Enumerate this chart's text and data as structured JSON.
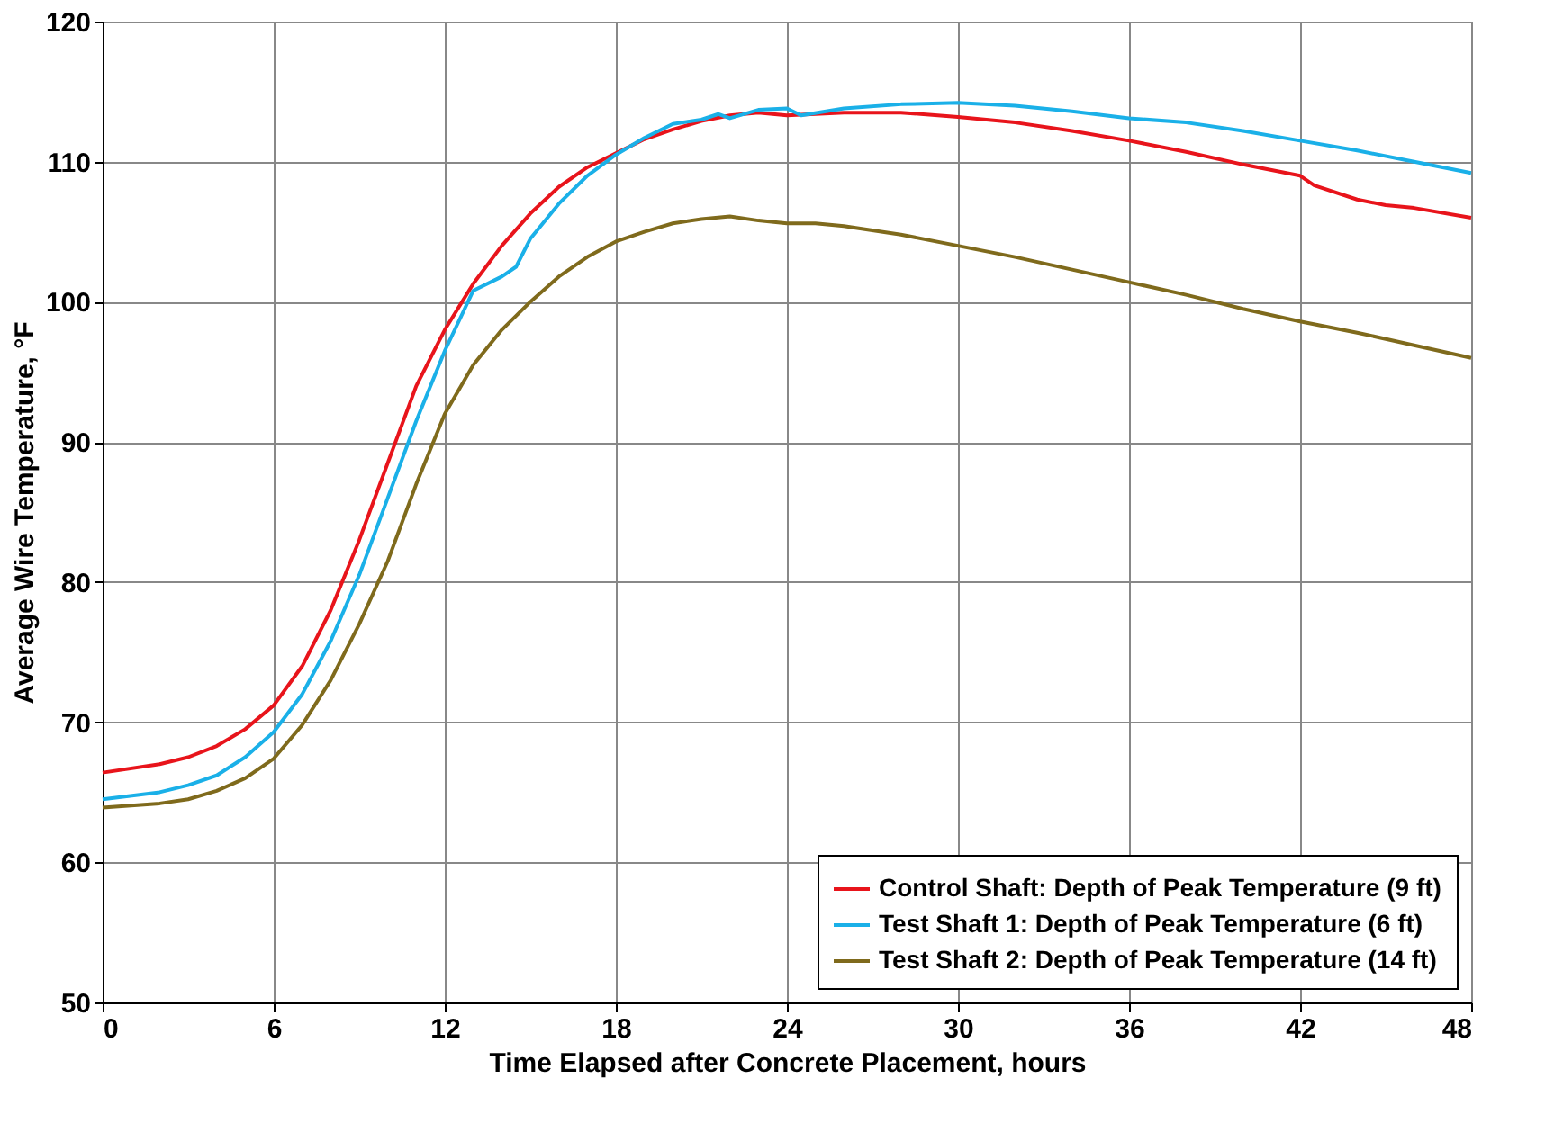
{
  "chart_data": {
    "type": "line",
    "xlabel": "Time Elapsed after Concrete Placement, hours",
    "ylabel": "Average Wire Temperature, °F",
    "xlim": [
      0,
      48
    ],
    "xticks": [
      0,
      6,
      12,
      18,
      24,
      30,
      36,
      42,
      48
    ],
    "ylim": [
      50,
      120
    ],
    "yticks": [
      50,
      60,
      70,
      80,
      90,
      100,
      110,
      120
    ],
    "grid": true,
    "legend": "bottom right",
    "marker": "none",
    "line_style": "solid",
    "series": [
      {
        "name": "Control Shaft: Depth of Peak Temperature (9 ft)",
        "color": "#e8141b",
        "x": [
          0,
          2,
          3,
          4,
          5,
          6,
          7,
          8,
          9,
          10,
          11,
          12,
          13,
          14,
          15,
          16,
          17,
          18,
          19,
          20,
          21,
          22,
          23,
          24,
          26,
          28,
          30,
          32,
          34,
          36,
          38,
          40,
          42,
          42.5,
          44,
          45,
          46,
          48
        ],
        "values": [
          66.4,
          67,
          67.5,
          68.3,
          69.5,
          71.2,
          74,
          78,
          83,
          88.5,
          94,
          98,
          101.3,
          104,
          106.3,
          108.2,
          109.6,
          110.6,
          111.6,
          112.3,
          112.9,
          113.3,
          113.5,
          113.3,
          113.5,
          113.5,
          113.2,
          112.8,
          112.2,
          111.5,
          110.7,
          109.8,
          109,
          108.3,
          107.3,
          106.9,
          106.7,
          106
        ]
      },
      {
        "name": "Test Shaft 1: Depth of Peak Temperature (6 ft)",
        "color": "#1ab0e8",
        "x": [
          0,
          2,
          3,
          4,
          5,
          6,
          7,
          8,
          9,
          10,
          11,
          12,
          13,
          14,
          14.5,
          15,
          16,
          17,
          18,
          19,
          20,
          21,
          21.6,
          22,
          23,
          24,
          24.5,
          26,
          28,
          30,
          32,
          34,
          36,
          38,
          40,
          42,
          44,
          46,
          48
        ],
        "values": [
          64.5,
          65,
          65.5,
          66.2,
          67.5,
          69.3,
          72,
          75.8,
          80.5,
          86,
          91.5,
          96.5,
          100.8,
          101.8,
          102.5,
          104.5,
          107,
          109,
          110.5,
          111.7,
          112.7,
          113,
          113.4,
          113.1,
          113.7,
          113.8,
          113.3,
          113.8,
          114.1,
          114.2,
          114,
          113.6,
          113.1,
          112.8,
          112.2,
          111.5,
          110.8,
          110,
          109.2
        ]
      },
      {
        "name": "Test Shaft 2: Depth of Peak Temperature (14 ft)",
        "color": "#7f6a1c",
        "x": [
          0,
          2,
          3,
          4,
          5,
          6,
          7,
          8,
          9,
          10,
          11,
          12,
          13,
          14,
          15,
          16,
          17,
          18,
          19,
          20,
          21,
          22,
          23,
          24,
          25,
          26,
          28,
          30,
          32,
          34,
          36,
          38,
          40,
          42,
          44,
          46,
          48
        ],
        "values": [
          63.9,
          64.2,
          64.5,
          65.1,
          66,
          67.4,
          69.8,
          73,
          77,
          81.5,
          87,
          92,
          95.5,
          98,
          100,
          101.8,
          103.2,
          104.3,
          105,
          105.6,
          105.9,
          106.1,
          105.8,
          105.6,
          105.6,
          105.4,
          104.8,
          104,
          103.2,
          102.3,
          101.4,
          100.5,
          99.5,
          98.6,
          97.8,
          96.9,
          96
        ]
      }
    ]
  }
}
